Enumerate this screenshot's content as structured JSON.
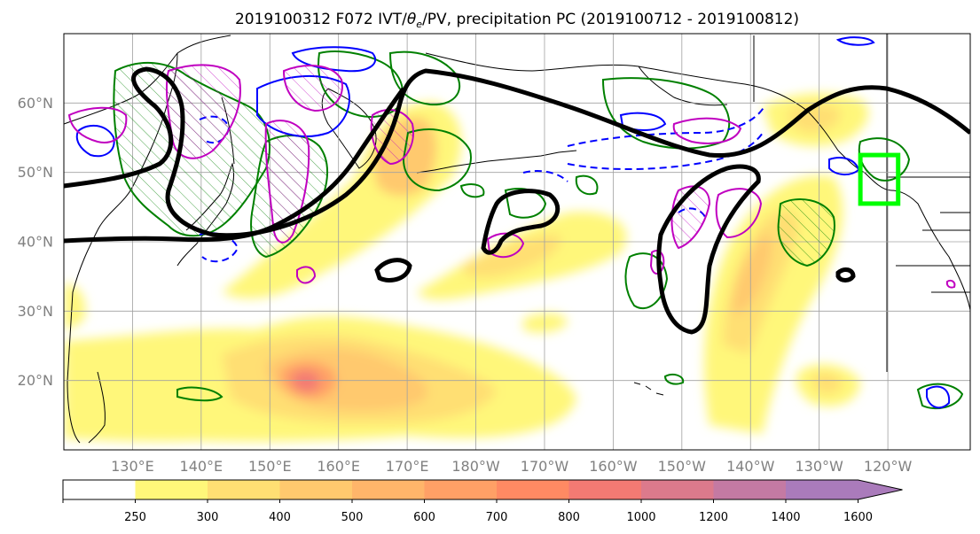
{
  "chart_data": {
    "type": "map",
    "title": "2019100312 F072 IVT/θe/PV, precipitation PC (2019100712 - 2019100812)",
    "title_parts": {
      "before": "2019100312 F072 IVT/",
      "theta": "θ",
      "sub": "e",
      "after": "/PV, precipitation PC (2019100712 - 2019100812)"
    },
    "projection": "plate carree",
    "lon_range_east": [
      120,
      252
    ],
    "lat_range": [
      10,
      70
    ],
    "grid": true,
    "lat_ticks": [
      {
        "value": 60,
        "label": "60°N"
      },
      {
        "value": 50,
        "label": "50°N"
      },
      {
        "value": 40,
        "label": "40°N"
      },
      {
        "value": 30,
        "label": "30°N"
      },
      {
        "value": 20,
        "label": "20°N"
      }
    ],
    "lon_ticks": [
      {
        "value": 130,
        "label": "130°E"
      },
      {
        "value": 140,
        "label": "140°E"
      },
      {
        "value": 150,
        "label": "150°E"
      },
      {
        "value": 160,
        "label": "160°E"
      },
      {
        "value": 170,
        "label": "170°E"
      },
      {
        "value": 180,
        "label": "180°W"
      },
      {
        "value": 190,
        "label": "170°W"
      },
      {
        "value": 200,
        "label": "160°W"
      },
      {
        "value": 210,
        "label": "150°W"
      },
      {
        "value": 220,
        "label": "140°W"
      },
      {
        "value": 230,
        "label": "130°W"
      },
      {
        "value": 240,
        "label": "120°W"
      }
    ],
    "colorbar": {
      "levels": [
        250,
        300,
        400,
        500,
        600,
        700,
        800,
        1000,
        1200,
        1400,
        1600
      ],
      "level_labels": [
        "250",
        "300",
        "400",
        "500",
        "600",
        "700",
        "800",
        "1000",
        "1200",
        "1400",
        "1600"
      ],
      "colors": [
        "#ffffff",
        "#fff77a",
        "#ffdf73",
        "#ffc96e",
        "#ffb56a",
        "#ffa066",
        "#ff8a63",
        "#f37a73",
        "#dc7a8c",
        "#c47aa3",
        "#aa7bbb"
      ],
      "extend": "max"
    },
    "ivt_shading": [
      {
        "name": "west-pacific-blob",
        "core_lon": 155,
        "core_lat": 20,
        "max_level": 1000
      },
      {
        "name": "north-pacific-plume",
        "core_lon": 168,
        "core_lat": 53,
        "max_level": 600
      },
      {
        "name": "central-pacific-band",
        "core_lon": 183,
        "core_lat": 39,
        "max_level": 500
      },
      {
        "name": "east-pacific-band",
        "core_lon": 222,
        "core_lat": 38,
        "max_level": 500
      },
      {
        "name": "gulf-of-alaska",
        "core_lon": 230,
        "core_lat": 60,
        "max_level": 400
      },
      {
        "name": "subtropical-east",
        "core_lon": 230,
        "core_lat": 20,
        "max_level": 400
      }
    ],
    "overlays": {
      "theta_e_contour_color": "#000000",
      "pv_positive_color": "#008000",
      "pv_negative_color": "#0000ff",
      "pv_magenta_color": "#c000c0",
      "target_box_color": "#00ff00",
      "target_box": {
        "lon_min": 236,
        "lon_max": 241.5,
        "lat_min": 45.5,
        "lat_max": 52.5
      }
    }
  }
}
